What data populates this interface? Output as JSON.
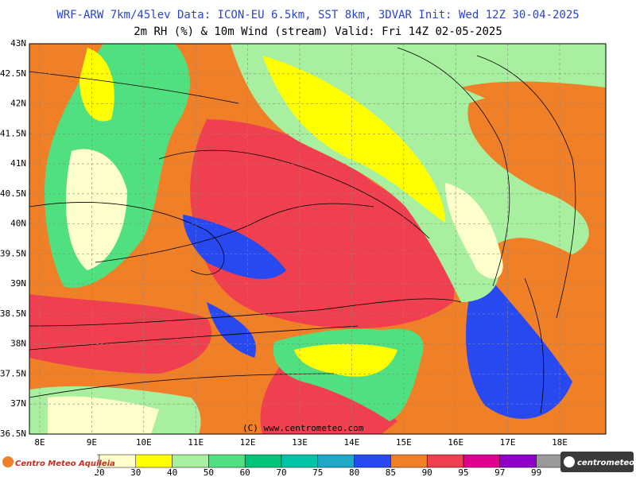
{
  "header": {
    "line1": "WRF-ARW 7km/45lev  Data: ICON-EU 6.5km, SST 8km, 3DVAR  Init: Wed 12Z 30-04-2025",
    "line2": "2m RH (%) & 10m Wind (stream)  Valid: Fri 14Z 02-05-2025"
  },
  "map": {
    "lat_labels": [
      "43N",
      "42.5N",
      "42N",
      "41.5N",
      "41N",
      "40.5N",
      "40N",
      "39.5N",
      "39N",
      "38.5N",
      "38N",
      "37.5N",
      "37N",
      "36.5N"
    ],
    "lon_labels": [
      "8E",
      "9E",
      "10E",
      "11E",
      "12E",
      "13E",
      "14E",
      "15E",
      "16E",
      "17E",
      "18E"
    ],
    "watermark": "(C) www.centrometeo.com"
  },
  "colorbar": {
    "ticks": [
      20,
      30,
      40,
      50,
      60,
      70,
      75,
      80,
      85,
      90,
      95,
      97,
      99
    ],
    "colors": [
      "#ffffcc",
      "#ffff00",
      "#a8f0a0",
      "#50e080",
      "#00c47a",
      "#00c4a8",
      "#20a8c8",
      "#2848f0",
      "#f08028",
      "#f04050",
      "#e00090",
      "#9000c8"
    ]
  },
  "logos": {
    "left": "Centro Meteo Aquileia",
    "right": "centrometeo"
  }
}
